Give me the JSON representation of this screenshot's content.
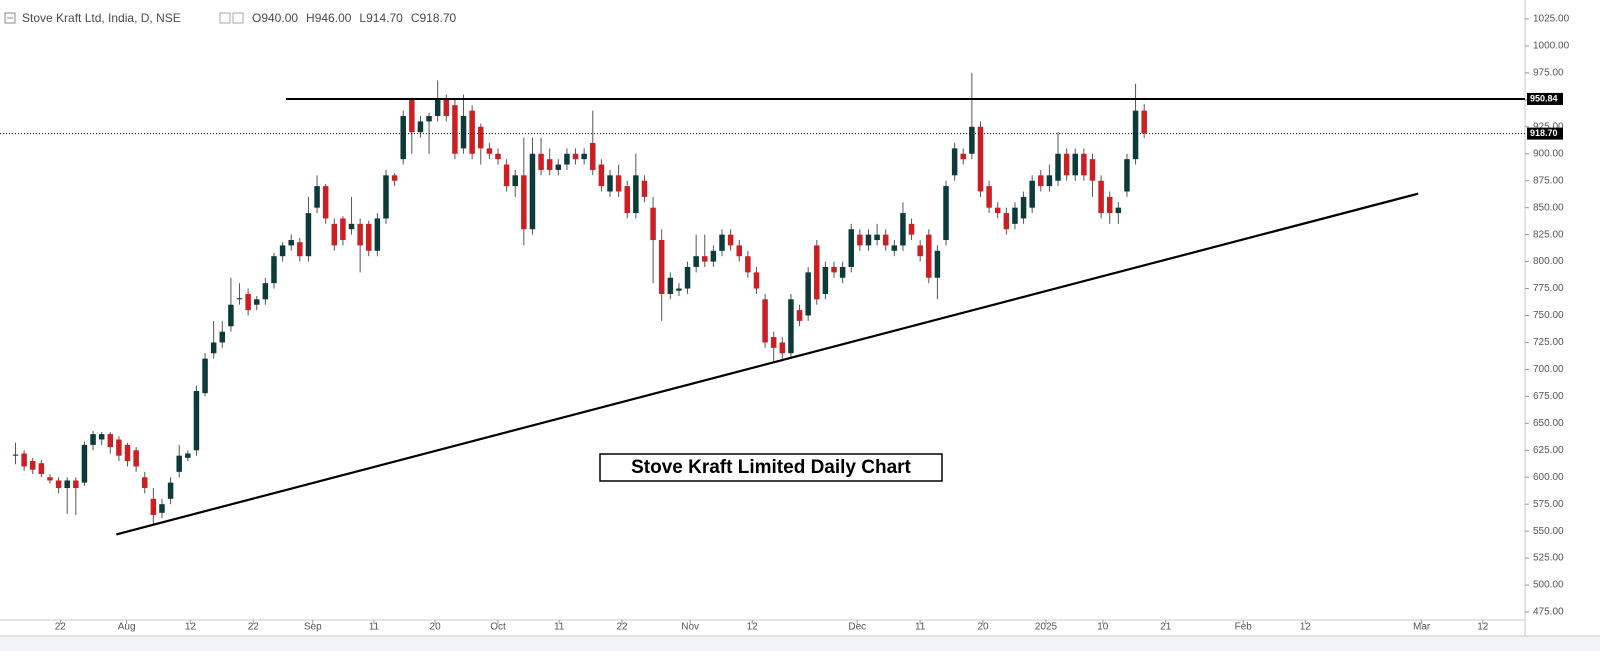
{
  "chart_data": {
    "type": "candlestick",
    "title": "Stove Kraft Ltd, India, D, NSE",
    "ohlc_header": [
      "O940.00",
      "H946.00",
      "L914.70",
      "C918.70"
    ],
    "annotation": "Stove Kraft Limited Daily Chart",
    "up_color": "#0c3b3a",
    "down_color": "#cc1f24",
    "grid": false,
    "xlim": [
      -0.8,
      176.2
    ],
    "xticks": [
      {
        "value": 6.2,
        "label": "22"
      },
      {
        "value": 13.9,
        "label": "Aug"
      },
      {
        "value": 21.3,
        "label": "12"
      },
      {
        "value": 28.6,
        "label": "22"
      },
      {
        "value": 35.5,
        "label": "Sep"
      },
      {
        "value": 42.6,
        "label": "11"
      },
      {
        "value": 49.7,
        "label": "20"
      },
      {
        "value": 57.0,
        "label": "Oct"
      },
      {
        "value": 64.1,
        "label": "11"
      },
      {
        "value": 71.4,
        "label": "22"
      },
      {
        "value": 79.3,
        "label": "Nov"
      },
      {
        "value": 86.5,
        "label": "12"
      },
      {
        "value": 98.7,
        "label": "Dec"
      },
      {
        "value": 106.0,
        "label": "11"
      },
      {
        "value": 113.3,
        "label": "20"
      },
      {
        "value": 120.6,
        "label": "2025"
      },
      {
        "value": 127.2,
        "label": "10"
      },
      {
        "value": 134.5,
        "label": "21"
      },
      {
        "value": 143.5,
        "label": "Feb"
      },
      {
        "value": 150.7,
        "label": "12"
      },
      {
        "value": 164.2,
        "label": "Mar"
      },
      {
        "value": 171.3,
        "label": "12"
      }
    ],
    "ylim": [
      467.6,
      1042.6
    ],
    "yticks": [
      {
        "value": 475,
        "label": "475.00"
      },
      {
        "value": 500,
        "label": "500.00"
      },
      {
        "value": 525,
        "label": "525.00"
      },
      {
        "value": 550,
        "label": "550.00"
      },
      {
        "value": 575,
        "label": "575.00"
      },
      {
        "value": 600,
        "label": "600.00"
      },
      {
        "value": 625,
        "label": "625.00"
      },
      {
        "value": 650,
        "label": "650.00"
      },
      {
        "value": 675,
        "label": "675.00"
      },
      {
        "value": 700,
        "label": "700.00"
      },
      {
        "value": 725,
        "label": "725.00"
      },
      {
        "value": 750,
        "label": "750.00"
      },
      {
        "value": 775,
        "label": "775.00"
      },
      {
        "value": 800,
        "label": "800.00"
      },
      {
        "value": 825,
        "label": "825.00"
      },
      {
        "value": 850,
        "label": "850.00"
      },
      {
        "value": 875,
        "label": "875.00"
      },
      {
        "value": 900,
        "label": "900.00"
      },
      {
        "value": 925,
        "label": "925.00"
      },
      {
        "value": 950,
        "label": "950.00"
      },
      {
        "value": 975,
        "label": "975.00"
      },
      {
        "value": 1000,
        "label": "1000.00"
      },
      {
        "value": 1025,
        "label": "1025.00"
      }
    ],
    "resistance": {
      "value": 950.84,
      "label": "950.84",
      "x_start": 32.4
    },
    "last_price": {
      "value": 918.7,
      "label": "918.70"
    },
    "trendline": {
      "x": [
        12.7,
        163.8
      ],
      "y": [
        547,
        863
      ]
    },
    "candles": {
      "x": [
        1,
        2,
        3,
        4,
        5,
        6,
        7,
        8,
        9,
        10,
        11,
        12,
        13,
        14,
        15,
        16,
        17,
        18,
        19,
        20,
        21,
        22,
        23,
        24,
        25,
        26,
        27,
        28,
        29,
        30,
        31,
        32,
        33,
        34,
        35,
        36,
        37,
        38,
        39,
        40,
        41,
        42,
        43,
        44,
        45,
        46,
        47,
        48,
        49,
        50,
        51,
        52,
        53,
        54,
        55,
        56,
        57,
        58,
        59,
        60,
        61,
        62,
        63,
        64,
        65,
        66,
        67,
        68,
        69,
        70,
        71,
        72,
        73,
        74,
        75,
        76,
        77,
        78,
        79,
        80,
        81,
        82,
        83,
        84,
        85,
        86,
        87,
        88,
        89,
        90,
        91,
        92,
        93,
        94,
        95,
        96,
        97,
        98,
        99,
        100,
        101,
        102,
        103,
        104,
        105,
        106,
        107,
        108,
        109,
        110,
        111,
        112,
        113,
        114,
        115,
        116,
        117,
        118,
        119,
        120,
        121,
        122,
        123,
        124,
        125,
        126,
        127,
        128,
        129,
        130,
        131,
        132
      ],
      "open": [
        620,
        622,
        615,
        613,
        600,
        597,
        590,
        597,
        595,
        630,
        635,
        640,
        635,
        630,
        625,
        600,
        580,
        567,
        580,
        605,
        618,
        625,
        678,
        715,
        725,
        740,
        765,
        770,
        760,
        765,
        780,
        805,
        815,
        818,
        805,
        850,
        870,
        835,
        840,
        830,
        835,
        835,
        810,
        840,
        880,
        895,
        950,
        920,
        930,
        935,
        950,
        945,
        905,
        940,
        925,
        905,
        900,
        890,
        870,
        880,
        830,
        900,
        895,
        885,
        890,
        900,
        895,
        910,
        890,
        865,
        880,
        870,
        845,
        875,
        850,
        820,
        770,
        773,
        775,
        795,
        805,
        800,
        810,
        825,
        815,
        805,
        790,
        765,
        730,
        725,
        715,
        755,
        750,
        815,
        770,
        795,
        785,
        795,
        825,
        815,
        820,
        825,
        810,
        815,
        835,
        815,
        825,
        785,
        820,
        880,
        900,
        900,
        925,
        870,
        850,
        845,
        835,
        840,
        850,
        880,
        870,
        875,
        900,
        880,
        900,
        895,
        875,
        860,
        845,
        865,
        895,
        940
      ],
      "high": [
        632,
        625,
        618,
        616,
        603,
        600,
        600,
        600,
        633,
        643,
        642,
        642,
        638,
        632,
        628,
        605,
        590,
        580,
        600,
        630,
        625,
        685,
        715,
        745,
        745,
        785,
        780,
        775,
        768,
        785,
        808,
        818,
        825,
        822,
        860,
        880,
        872,
        840,
        842,
        860,
        840,
        838,
        845,
        885,
        882,
        940,
        952,
        935,
        938,
        968,
        955,
        950,
        955,
        945,
        928,
        910,
        905,
        895,
        885,
        915,
        915,
        915,
        905,
        895,
        905,
        905,
        905,
        940,
        895,
        885,
        890,
        875,
        900,
        880,
        860,
        830,
        790,
        780,
        800,
        825,
        825,
        815,
        830,
        830,
        820,
        810,
        795,
        770,
        735,
        730,
        770,
        760,
        795,
        820,
        800,
        800,
        800,
        835,
        830,
        830,
        835,
        830,
        820,
        855,
        840,
        820,
        830,
        815,
        875,
        910,
        905,
        975,
        930,
        875,
        855,
        850,
        855,
        865,
        880,
        885,
        890,
        920,
        905,
        905,
        905,
        900,
        880,
        865,
        855,
        900,
        965,
        946
      ],
      "low": [
        612,
        606,
        603,
        600,
        594,
        585,
        566,
        565,
        592,
        625,
        630,
        622,
        615,
        610,
        605,
        585,
        557,
        562,
        575,
        600,
        615,
        620,
        675,
        710,
        720,
        735,
        760,
        750,
        755,
        760,
        775,
        800,
        810,
        800,
        800,
        845,
        835,
        810,
        815,
        825,
        790,
        805,
        805,
        835,
        870,
        890,
        900,
        915,
        900,
        930,
        930,
        895,
        900,
        895,
        890,
        895,
        890,
        865,
        860,
        815,
        825,
        880,
        880,
        880,
        885,
        890,
        890,
        880,
        865,
        860,
        860,
        840,
        840,
        855,
        780,
        745,
        765,
        768,
        770,
        790,
        795,
        795,
        805,
        810,
        800,
        785,
        770,
        720,
        708,
        710,
        710,
        740,
        745,
        760,
        765,
        785,
        780,
        790,
        810,
        810,
        815,
        810,
        805,
        810,
        820,
        800,
        780,
        765,
        815,
        875,
        890,
        895,
        860,
        845,
        840,
        825,
        830,
        835,
        845,
        865,
        865,
        870,
        875,
        875,
        875,
        860,
        840,
        835,
        835,
        860,
        890,
        914.7
      ],
      "close": [
        621,
        610,
        607,
        603,
        597,
        590,
        597,
        590,
        630,
        640,
        640,
        628,
        620,
        615,
        610,
        590,
        565,
        575,
        595,
        620,
        622,
        680,
        710,
        725,
        735,
        760,
        766,
        755,
        765,
        780,
        805,
        815,
        820,
        805,
        845,
        870,
        840,
        815,
        820,
        835,
        815,
        810,
        840,
        880,
        875,
        935,
        920,
        930,
        935,
        950,
        935,
        900,
        935,
        900,
        905,
        900,
        895,
        870,
        880,
        830,
        900,
        885,
        885,
        890,
        900,
        895,
        900,
        885,
        870,
        880,
        865,
        845,
        880,
        860,
        820,
        770,
        785,
        775,
        795,
        805,
        800,
        810,
        825,
        815,
        805,
        790,
        775,
        725,
        720,
        715,
        765,
        745,
        790,
        765,
        795,
        790,
        795,
        830,
        815,
        825,
        825,
        815,
        815,
        845,
        825,
        805,
        785,
        810,
        870,
        905,
        895,
        925,
        865,
        850,
        845,
        830,
        850,
        860,
        875,
        870,
        880,
        900,
        880,
        900,
        880,
        875,
        845,
        845,
        850,
        895,
        940,
        918.7
      ]
    }
  }
}
